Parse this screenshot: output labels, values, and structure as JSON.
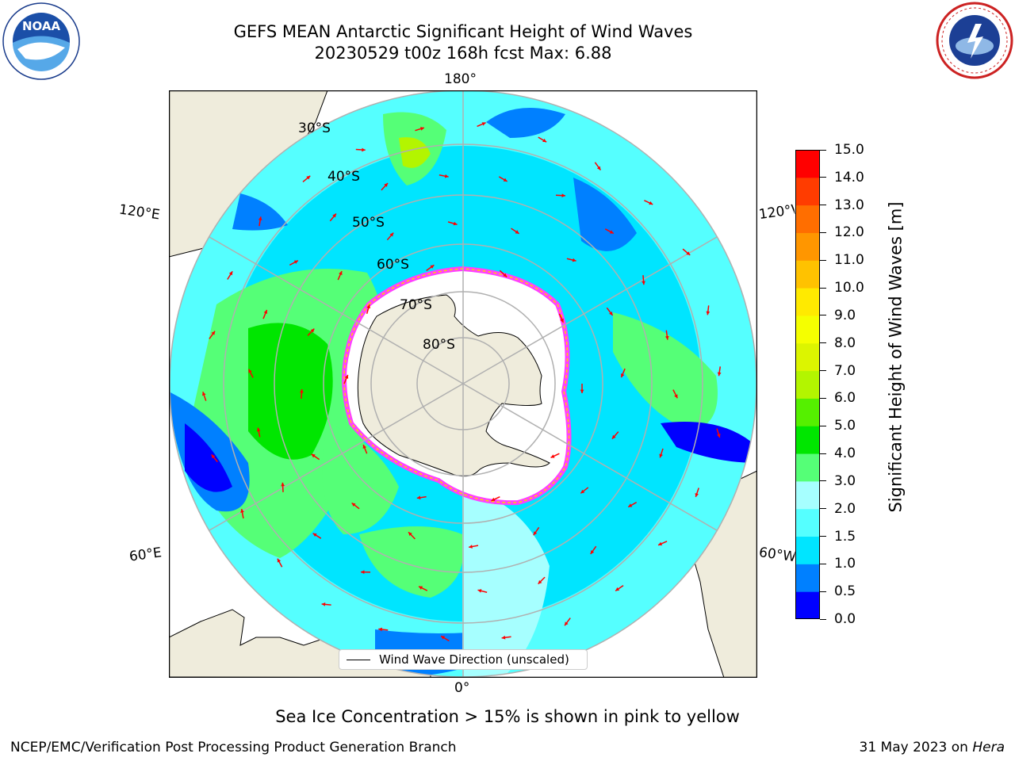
{
  "title_line1": "GEFS MEAN Antarctic Significant Height of Wind Waves",
  "title_line2": "20230529 t00z 168h fcst   Max: 6.88",
  "logos": {
    "left": "noaa-logo",
    "right": "national-weather-service-logo"
  },
  "map": {
    "projection": "south polar stereographic",
    "lon_labels": {
      "top": "180°",
      "bottom": "0°",
      "left_upper": "120°E",
      "left_lower": "60°E",
      "right_upper": "120°W",
      "right_lower": "60°W"
    },
    "lat_labels": [
      "30°S",
      "40°S",
      "50°S",
      "60°S",
      "70°S",
      "80°S"
    ],
    "legend_label": "Wind Wave Direction (unscaled)",
    "arrow_color": "#ff0000",
    "land_color": "#efecdc"
  },
  "colorbar": {
    "label": "Significant Height of Wind Waves [m]",
    "ticks": [
      "0.0",
      "0.5",
      "1.0",
      "1.5",
      "2.0",
      "3.0",
      "4.0",
      "5.0",
      "6.0",
      "7.0",
      "8.0",
      "9.0",
      "10.0",
      "11.0",
      "12.0",
      "13.0",
      "14.0",
      "15.0"
    ],
    "colors": [
      "#0000ff",
      "#0080ff",
      "#00e5ff",
      "#55ffff",
      "#a6ffff",
      "#55ff77",
      "#00e600",
      "#55f000",
      "#b3f500",
      "#dcf500",
      "#f5ff00",
      "#ffea00",
      "#ffc200",
      "#ff9600",
      "#ff6e00",
      "#ff3c00",
      "#ff0000"
    ]
  },
  "caption": "Sea Ice Concentration > 15% is shown in pink to yellow",
  "footer_left": "NCEP/EMC/Verification Post Processing Product Generation Branch",
  "footer_right": "31 May 2023 on",
  "footer_right_italic": "Hera"
}
